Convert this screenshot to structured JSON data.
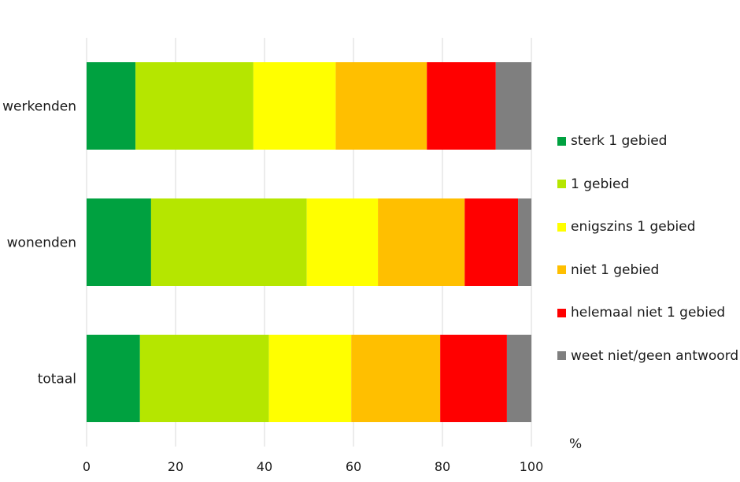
{
  "chart_data": {
    "type": "bar",
    "orientation": "horizontal",
    "stacked": true,
    "categories": [
      "werkenden",
      "wonenden",
      "totaal"
    ],
    "series": [
      {
        "name": "sterk 1 gebied",
        "color": "#00a140",
        "values": [
          11,
          14.5,
          12
        ]
      },
      {
        "name": "1 gebied",
        "color": "#b5e600",
        "values": [
          26.5,
          35,
          29
        ]
      },
      {
        "name": "enigszins 1 gebied",
        "color": "#ffff00",
        "values": [
          18.5,
          16,
          18.5
        ]
      },
      {
        "name": "niet 1 gebied",
        "color": "#ffbf00",
        "values": [
          20.5,
          19.5,
          20
        ]
      },
      {
        "name": "helemaal niet 1 gebied",
        "color": "#ff0000",
        "values": [
          15.5,
          12,
          15
        ]
      },
      {
        "name": "weet niet/geen antwoord",
        "color": "#7f7f7f",
        "values": [
          8,
          3,
          5.5
        ]
      }
    ],
    "xlim": [
      0,
      100
    ],
    "xticks": [
      "0",
      "20",
      "40",
      "60",
      "80",
      "100"
    ],
    "unit": "%",
    "grid": "vertical",
    "legend_position": "right"
  }
}
